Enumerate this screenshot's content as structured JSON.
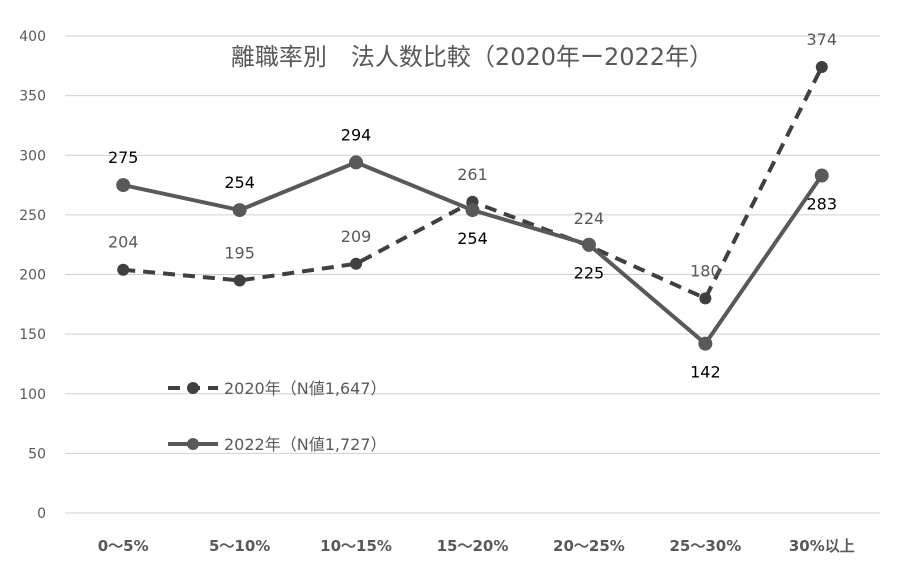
{
  "chart_data": {
    "type": "line",
    "title": "離職率別　法人数比較（2020年ー2022年）",
    "categories": [
      "0〜5%",
      "5〜10%",
      "10〜15%",
      "15〜20%",
      "20〜25%",
      "25〜30%",
      "30%以上"
    ],
    "ylim": [
      0,
      400
    ],
    "yticks": [
      0,
      50,
      100,
      150,
      200,
      250,
      300,
      350,
      400
    ],
    "grid": true,
    "legend_position": "bottom-left",
    "series": [
      {
        "name": "2020年（N値1,647）",
        "values": [
          204,
          195,
          209,
          261,
          224,
          180,
          374
        ],
        "color": "#404040",
        "line_style": "dashed",
        "marker": "circle"
      },
      {
        "name": "2022年（N値1,727）",
        "values": [
          275,
          254,
          294,
          254,
          225,
          142,
          283
        ],
        "color": "#595959",
        "line_style": "solid",
        "marker": "circle"
      }
    ]
  }
}
